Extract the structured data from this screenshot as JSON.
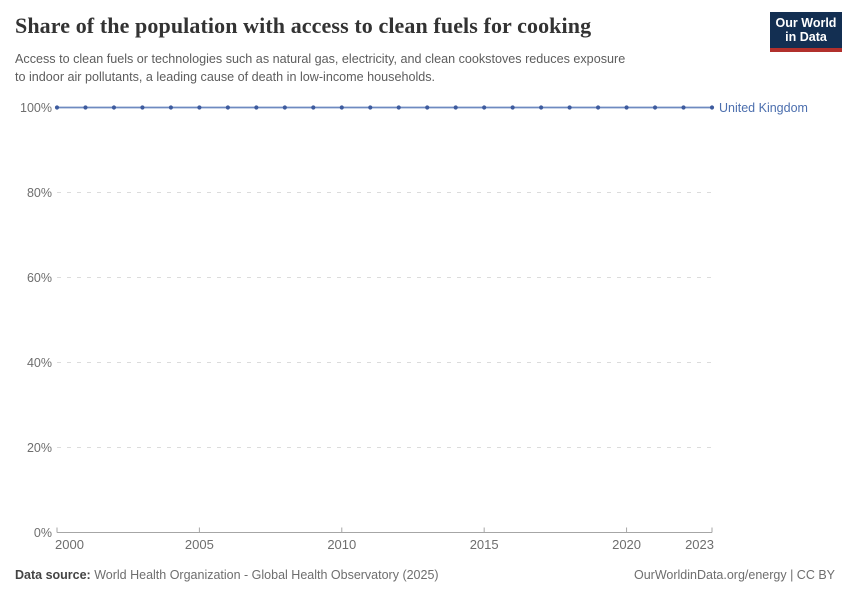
{
  "header": {
    "title": "Share of the population with access to clean fuels for cooking",
    "subtitle": "Access to clean fuels or technologies such as natural gas, electricity, and clean cookstoves reduces exposure\nto indoor air pollutants, a leading cause of death in low-income households.",
    "logo": {
      "line1": "Our World",
      "line2": "in Data",
      "bg_color": "#132f52",
      "accent_color": "#b1302c"
    }
  },
  "chart_data": {
    "type": "line",
    "title": "Share of the population with access to clean fuels for cooking",
    "xlabel": "",
    "ylabel": "",
    "x": [
      2000,
      2001,
      2002,
      2003,
      2004,
      2005,
      2006,
      2007,
      2008,
      2009,
      2010,
      2011,
      2012,
      2013,
      2014,
      2015,
      2016,
      2017,
      2018,
      2019,
      2020,
      2021,
      2022,
      2023
    ],
    "series": [
      {
        "name": "United Kingdom",
        "values": [
          100,
          100,
          100,
          100,
          100,
          100,
          100,
          100,
          100,
          100,
          100,
          100,
          100,
          100,
          100,
          100,
          100,
          100,
          100,
          100,
          100,
          100,
          100,
          100
        ],
        "line_color": "#6e8ac0",
        "marker_color": "#3d5b9e",
        "label_color": "#4c6fae"
      }
    ],
    "xlim": [
      2000,
      2023
    ],
    "ylim": [
      0,
      100
    ],
    "x_ticks": [
      2000,
      2005,
      2010,
      2015,
      2020,
      2023
    ],
    "y_ticks": [
      0,
      20,
      40,
      60,
      80,
      100
    ],
    "y_tick_suffix": "%",
    "grid": "horizontal-dashed",
    "legend_position": "right-of-line-end",
    "colors": {
      "grid": "#dcdcdc",
      "axis": "#a6a6a6",
      "tick_text": "#6e6e6e"
    }
  },
  "footer": {
    "datasource_label": "Data source:",
    "datasource_text": " World Health Organization - Global Health Observatory (2025)",
    "credit": "OurWorldinData.org/energy | CC BY"
  }
}
